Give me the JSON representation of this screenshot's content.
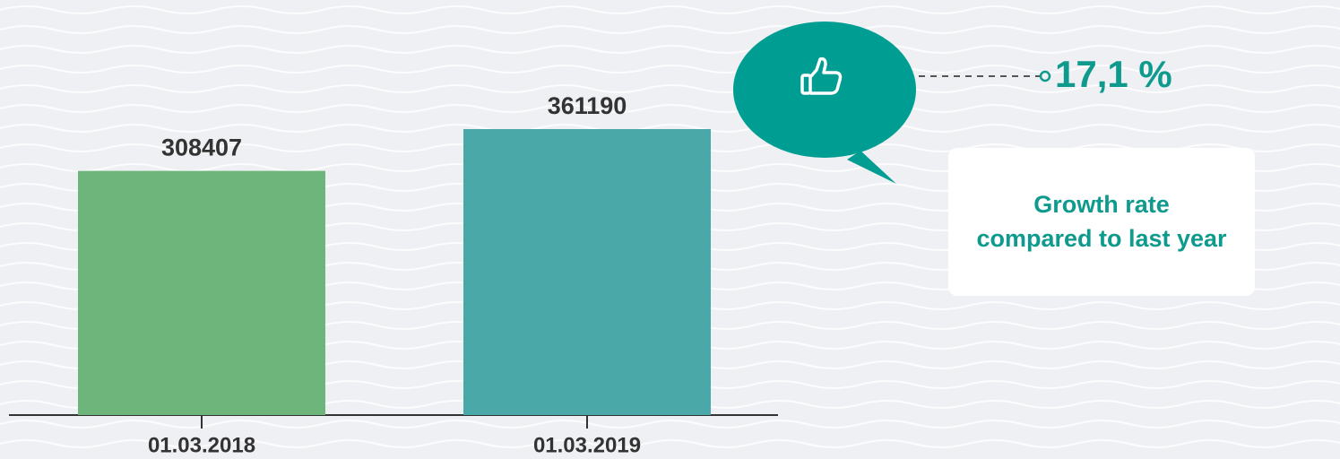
{
  "chart_data": {
    "type": "bar",
    "categories": [
      "01.03.2018",
      "01.03.2019"
    ],
    "values": [
      308407,
      361190
    ],
    "colors": [
      "#6db57b",
      "#4aa8a9"
    ],
    "annotation_value": "17,1 %",
    "annotation_text": "Growth rate compared to last year"
  }
}
